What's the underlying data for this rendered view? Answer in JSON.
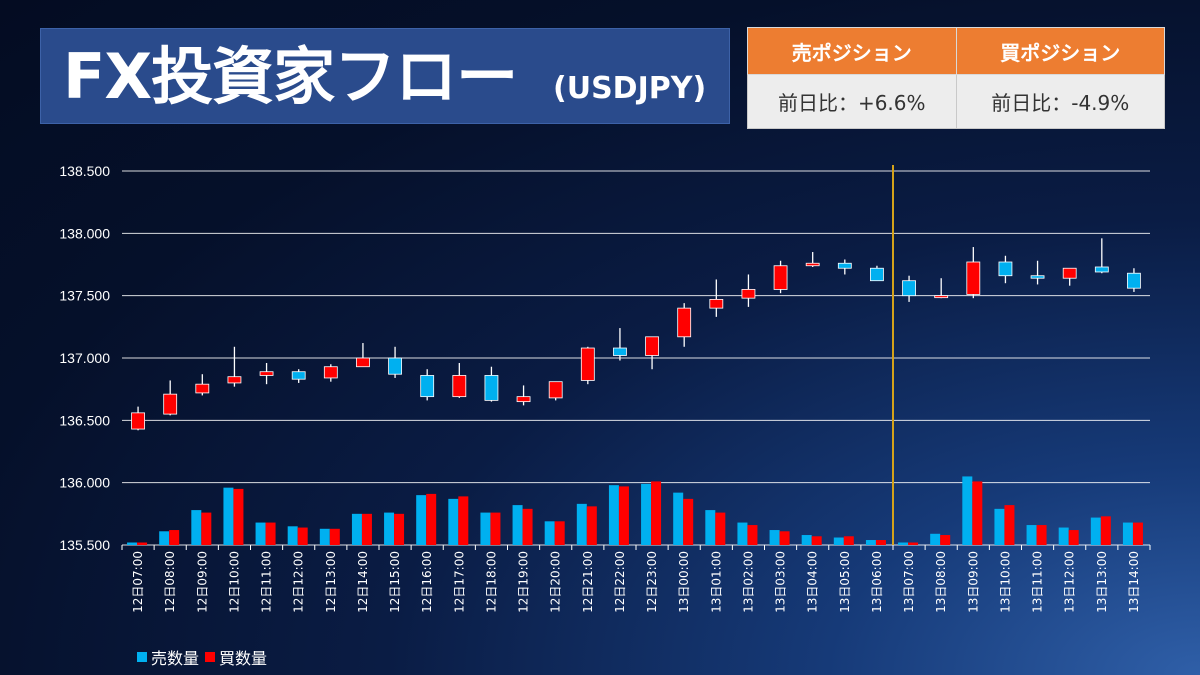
{
  "header": {
    "title": "FX投資家フロー",
    "subtitle": "(USDJPY)"
  },
  "positions": {
    "sell_header": "売ポジション",
    "buy_header": "買ポジション",
    "sell_value": "前日比：+6.6%",
    "buy_value": "前日比：-4.9%"
  },
  "colors": {
    "sell": "#00b0f0",
    "buy": "#ff0000",
    "marker": "#d4a21a",
    "grid": "#ffffff",
    "header_orange": "#ed7d31"
  },
  "chart_data": {
    "type": "candlestick",
    "ylim": [
      135.5,
      138.5
    ],
    "yticks": [
      "135.500",
      "136.000",
      "136.500",
      "137.000",
      "137.500",
      "138.000",
      "138.500"
    ],
    "categories": [
      "12日07:00",
      "12日08:00",
      "12日09:00",
      "12日10:00",
      "12日11:00",
      "12日12:00",
      "12日13:00",
      "12日14:00",
      "12日15:00",
      "12日16:00",
      "12日17:00",
      "12日18:00",
      "12日19:00",
      "12日20:00",
      "12日21:00",
      "12日22:00",
      "12日23:00",
      "13日00:00",
      "13日01:00",
      "13日02:00",
      "13日03:00",
      "13日04:00",
      "13日05:00",
      "13日06:00",
      "13日07:00",
      "13日08:00",
      "13日09:00",
      "13日10:00",
      "13日11:00",
      "13日12:00",
      "13日13:00",
      "13日14:00"
    ],
    "candles": [
      {
        "o": 136.43,
        "c": 136.56,
        "h": 136.61,
        "l": 136.42,
        "type": "buy"
      },
      {
        "o": 136.55,
        "c": 136.71,
        "h": 136.82,
        "l": 136.54,
        "type": "buy"
      },
      {
        "o": 136.72,
        "c": 136.79,
        "h": 136.87,
        "l": 136.7,
        "type": "buy"
      },
      {
        "o": 136.8,
        "c": 136.85,
        "h": 137.09,
        "l": 136.77,
        "type": "buy"
      },
      {
        "o": 136.86,
        "c": 136.89,
        "h": 136.96,
        "l": 136.79,
        "type": "buy"
      },
      {
        "o": 136.89,
        "c": 136.83,
        "h": 136.91,
        "l": 136.8,
        "type": "sell"
      },
      {
        "o": 136.84,
        "c": 136.93,
        "h": 136.95,
        "l": 136.81,
        "type": "buy"
      },
      {
        "o": 136.93,
        "c": 137.0,
        "h": 137.12,
        "l": 136.93,
        "type": "buy"
      },
      {
        "o": 137.0,
        "c": 136.87,
        "h": 137.09,
        "l": 136.84,
        "type": "sell"
      },
      {
        "o": 136.86,
        "c": 136.69,
        "h": 136.91,
        "l": 136.66,
        "type": "sell"
      },
      {
        "o": 136.69,
        "c": 136.86,
        "h": 136.96,
        "l": 136.68,
        "type": "buy"
      },
      {
        "o": 136.86,
        "c": 136.66,
        "h": 136.93,
        "l": 136.65,
        "type": "sell"
      },
      {
        "o": 136.65,
        "c": 136.69,
        "h": 136.78,
        "l": 136.62,
        "type": "buy"
      },
      {
        "o": 136.68,
        "c": 136.81,
        "h": 136.81,
        "l": 136.66,
        "type": "buy"
      },
      {
        "o": 136.82,
        "c": 137.08,
        "h": 137.09,
        "l": 136.79,
        "type": "buy"
      },
      {
        "o": 137.08,
        "c": 137.02,
        "h": 137.24,
        "l": 136.98,
        "type": "sell"
      },
      {
        "o": 137.02,
        "c": 137.17,
        "h": 137.17,
        "l": 136.91,
        "type": "buy"
      },
      {
        "o": 137.17,
        "c": 137.4,
        "h": 137.44,
        "l": 137.09,
        "type": "buy"
      },
      {
        "o": 137.4,
        "c": 137.47,
        "h": 137.63,
        "l": 137.33,
        "type": "buy"
      },
      {
        "o": 137.48,
        "c": 137.55,
        "h": 137.67,
        "l": 137.41,
        "type": "buy"
      },
      {
        "o": 137.55,
        "c": 137.74,
        "h": 137.78,
        "l": 137.52,
        "type": "buy"
      },
      {
        "o": 137.74,
        "c": 137.76,
        "h": 137.85,
        "l": 137.73,
        "type": "buy"
      },
      {
        "o": 137.76,
        "c": 137.72,
        "h": 137.79,
        "l": 137.67,
        "type": "sell"
      },
      {
        "o": 137.72,
        "c": 137.62,
        "h": 137.74,
        "l": 137.62,
        "type": "sell"
      },
      {
        "o": 137.62,
        "c": 137.5,
        "h": 137.66,
        "l": 137.45,
        "type": "sell"
      },
      {
        "o": 137.49,
        "c": 137.5,
        "h": 137.64,
        "l": 137.48,
        "type": "buy"
      },
      {
        "o": 137.51,
        "c": 137.77,
        "h": 137.89,
        "l": 137.48,
        "type": "buy"
      },
      {
        "o": 137.77,
        "c": 137.66,
        "h": 137.82,
        "l": 137.6,
        "type": "sell"
      },
      {
        "o": 137.66,
        "c": 137.64,
        "h": 137.78,
        "l": 137.59,
        "type": "sell"
      },
      {
        "o": 137.64,
        "c": 137.72,
        "h": 137.72,
        "l": 137.58,
        "type": "buy"
      },
      {
        "o": 137.73,
        "c": 137.69,
        "h": 137.96,
        "l": 137.68,
        "type": "sell"
      },
      {
        "o": 137.68,
        "c": 137.56,
        "h": 137.72,
        "l": 137.53,
        "type": "sell"
      }
    ],
    "sell_volume": [
      135.52,
      135.61,
      135.78,
      135.96,
      135.68,
      135.65,
      135.63,
      135.75,
      135.76,
      135.9,
      135.87,
      135.76,
      135.82,
      135.69,
      135.83,
      135.98,
      135.99,
      135.92,
      135.78,
      135.68,
      135.62,
      135.58,
      135.56,
      135.54,
      135.52,
      135.59,
      136.05,
      135.79,
      135.66,
      135.64,
      135.72,
      135.68
    ],
    "buy_volume": [
      135.52,
      135.62,
      135.76,
      135.95,
      135.68,
      135.64,
      135.63,
      135.75,
      135.75,
      135.91,
      135.89,
      135.76,
      135.79,
      135.69,
      135.81,
      135.97,
      136.01,
      135.87,
      135.76,
      135.66,
      135.61,
      135.57,
      135.57,
      135.54,
      135.52,
      135.58,
      136.01,
      135.82,
      135.66,
      135.62,
      135.73,
      135.68
    ],
    "marker_between": [
      "13日06:00",
      "13日07:00"
    ],
    "legend": [
      "売数量",
      "買数量"
    ],
    "legend_position": "bottom-left",
    "grid": true
  }
}
